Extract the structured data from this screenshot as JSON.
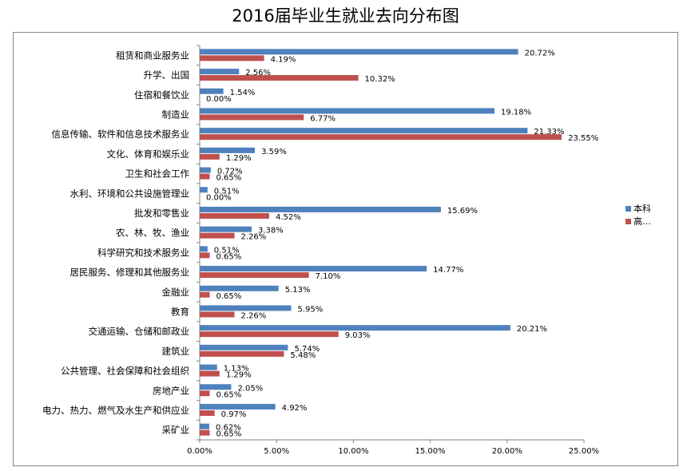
{
  "chart_data": {
    "type": "bar",
    "orientation": "horizontal",
    "title": "2016届毕业生就业去向分布图",
    "categories": [
      "租赁和商业服务业",
      "升学、出国",
      "住宿和餐饮业",
      "制造业",
      "信息传输、软件和信息技术服务业",
      "文化、体育和娱乐业",
      "卫生和社会工作",
      "水利、环境和公共设施管理业",
      "批发和零售业",
      "农、林、牧、渔业",
      "科学研究和技术服务业",
      "居民服务、修理和其他服务业",
      "金融业",
      "教育",
      "交通运输、仓储和邮政业",
      "建筑业",
      "公共管理、社会保障和社会组织",
      "房地产业",
      "电力、热力、燃气及水生产和供应业",
      "采矿业"
    ],
    "series": [
      {
        "name": "本科",
        "color": "#4F81BD",
        "values": [
          20.72,
          2.56,
          1.54,
          19.18,
          21.33,
          3.59,
          0.72,
          0.51,
          15.69,
          3.38,
          0.51,
          14.77,
          5.13,
          5.95,
          20.21,
          5.74,
          1.13,
          2.05,
          4.92,
          0.62
        ],
        "labels": [
          "20.72%",
          "2.56%",
          "1.54%",
          "19.18%",
          "21.33%",
          "3.59%",
          "0.72%",
          "0.51%",
          "15.69%",
          "3.38%",
          "0.51%",
          "14.77%",
          "5.13%",
          "5.95%",
          "20.21%",
          "5.74%",
          "1.13%",
          "2.05%",
          "4.92%",
          "0.62%"
        ]
      },
      {
        "name": "高…",
        "color": "#C0504D",
        "values": [
          4.19,
          10.32,
          0.0,
          6.77,
          23.55,
          1.29,
          0.65,
          0.0,
          4.52,
          2.26,
          0.65,
          7.1,
          0.65,
          2.26,
          9.03,
          5.48,
          1.29,
          0.65,
          0.97,
          0.65
        ],
        "labels": [
          "4.19%",
          "10.32%",
          "0.00%",
          "6.77%",
          "23.55%",
          "1.29%",
          "0.65%",
          "0.00%",
          "4.52%",
          "2.26%",
          "0.65%",
          "7.10%",
          "0.65%",
          "2.26%",
          "9.03%",
          "5.48%",
          "1.29%",
          "0.65%",
          "0.97%",
          "0.65%"
        ]
      }
    ],
    "xlim": [
      0,
      25
    ],
    "xticks": [
      "0.00%",
      "5.00%",
      "10.00%",
      "15.00%",
      "20.00%",
      "25.00%"
    ],
    "xtick_values": [
      0,
      5,
      10,
      15,
      20,
      25
    ],
    "grid": false,
    "legend_position": "right"
  }
}
